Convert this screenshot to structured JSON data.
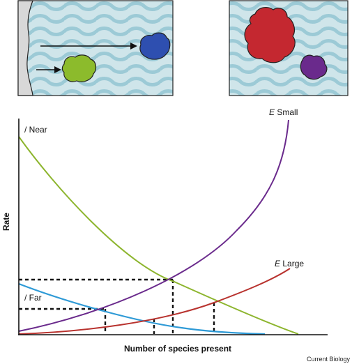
{
  "figure": {
    "y_axis_label": "Rate",
    "x_axis_label": "Number of species present",
    "credit": "Current Biology"
  },
  "curves": {
    "i_near": {
      "label": "/ Near",
      "color": "#8db52e"
    },
    "i_far": {
      "label": "/ Far",
      "color": "#2e9ad6"
    },
    "e_small": {
      "label_italic": "E",
      "label_text": " Small",
      "color": "#6a2a8c"
    },
    "e_large": {
      "label_italic": "E",
      "label_text": " Large",
      "color": "#b8322e"
    }
  },
  "islands": {
    "left_panel": {
      "water": "#cfe5ea",
      "wave": "#9ccad6",
      "mainland": "#d8d8d8",
      "small_island_color": "#2e4fb0",
      "near_island_color": "#8cbb2c"
    },
    "right_panel": {
      "large_island_color": "#c42830",
      "small_island_color": "#6a2a8c"
    }
  }
}
